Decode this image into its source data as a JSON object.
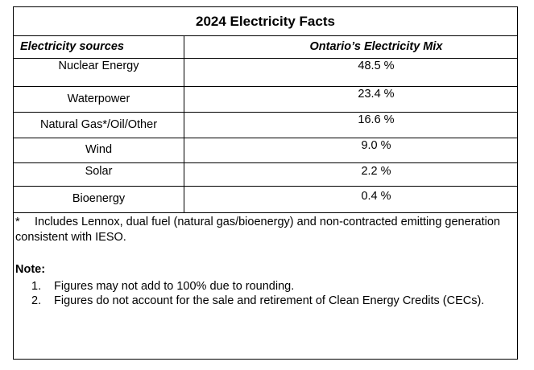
{
  "table": {
    "title": "2024 Electricity Facts",
    "header_left": "Electricity sources",
    "header_right": "Ontario’s Electricity Mix",
    "rows": [
      {
        "source": "Nuclear Energy",
        "value": "48.5 %"
      },
      {
        "source": "Waterpower",
        "value": "23.4 %"
      },
      {
        "source": "Natural Gas*/Oil/Other",
        "value": "16.6 %"
      },
      {
        "source": "Wind",
        "value": "9.0 %"
      },
      {
        "source": "Solar",
        "value": "2.2 %"
      },
      {
        "source": "Bioenergy",
        "value": "0.4 %"
      }
    ]
  },
  "footnote": {
    "marker": "*",
    "text": "Includes Lennox, dual fuel (natural gas/bioenergy) and non-contracted emitting generation consistent with IESO."
  },
  "note": {
    "heading": "Note:",
    "items": [
      {
        "num": "1.",
        "text": "Figures may not add to 100% due to rounding."
      },
      {
        "num": "2.",
        "text": "Figures do not account for the sale and retirement of Clean Energy Credits (CECs)."
      }
    ]
  }
}
